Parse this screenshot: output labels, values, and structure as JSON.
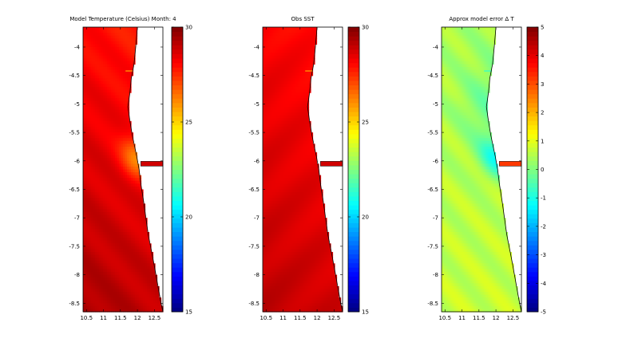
{
  "chart_data": [
    {
      "type": "heatmap",
      "title": "Model Temperature (Celsius)  Month: 4",
      "xlim": [
        10.4,
        12.75
      ],
      "ylim": [
        -8.65,
        -3.65
      ],
      "xticks": [
        10.5,
        11,
        11.5,
        12,
        12.5
      ],
      "xtick_labels": [
        "10.5",
        "11",
        "11.5",
        "12",
        "12.5"
      ],
      "yticks": [
        -4,
        -4.5,
        -5,
        -5.5,
        -6,
        -6.5,
        -7,
        -7.5,
        -8,
        -8.5
      ],
      "ytick_labels": [
        "-4",
        "-4.5",
        "-5",
        "-5.5",
        "-6",
        "-6.5",
        "-7",
        "-7.5",
        "-8",
        "-8.5"
      ],
      "colorbar": {
        "min": 15,
        "max": 30,
        "ticks": [
          15,
          20,
          25,
          30
        ],
        "tick_labels": [
          "15",
          "20",
          "25",
          "30"
        ]
      },
      "colormap": "jet",
      "field": "model"
    },
    {
      "type": "heatmap",
      "title": "Obs SST",
      "xlim": [
        10.4,
        12.75
      ],
      "ylim": [
        -8.65,
        -3.65
      ],
      "xticks": [
        10.5,
        11,
        11.5,
        12,
        12.5
      ],
      "xtick_labels": [
        "10.5",
        "11",
        "11.5",
        "12",
        "12.5"
      ],
      "yticks": [
        -4,
        -4.5,
        -5,
        -5.5,
        -6,
        -6.5,
        -7,
        -7.5,
        -8,
        -8.5
      ],
      "ytick_labels": [
        "-4",
        "-4.5",
        "-5",
        "-5.5",
        "-6",
        "-6.5",
        "-7",
        "-7.5",
        "-8",
        "-8.5"
      ],
      "colorbar": {
        "min": 15,
        "max": 30,
        "ticks": [
          15,
          20,
          25,
          30
        ],
        "tick_labels": [
          "15",
          "20",
          "25",
          "30"
        ]
      },
      "colormap": "jet",
      "field": "obs"
    },
    {
      "type": "heatmap",
      "title": "Approx model error  Δ T",
      "xlim": [
        10.4,
        12.75
      ],
      "ylim": [
        -8.65,
        -3.65
      ],
      "xticks": [
        10.5,
        11,
        11.5,
        12,
        12.5
      ],
      "xtick_labels": [
        "10.5",
        "11",
        "11.5",
        "12",
        "12.5"
      ],
      "yticks": [
        -4,
        -4.5,
        -5,
        -5.5,
        -6,
        -6.5,
        -7,
        -7.5,
        -8,
        -8.5
      ],
      "ytick_labels": [
        "-4",
        "-4.5",
        "-5",
        "-5.5",
        "-6",
        "-6.5",
        "-7",
        "-7.5",
        "-8",
        "-8.5"
      ],
      "colorbar": {
        "min": -5,
        "max": 5,
        "ticks": [
          -5,
          -4,
          -3,
          -2,
          -1,
          0,
          1,
          2,
          3,
          4,
          5
        ],
        "tick_labels": [
          "-5",
          "-4",
          "-3",
          "-2",
          "-1",
          "0",
          "1",
          "2",
          "3",
          "4",
          "5"
        ]
      },
      "colormap": "jet",
      "field": "error"
    }
  ],
  "coastline": {
    "lon": [
      12.0,
      11.95,
      11.9,
      11.82,
      11.78,
      11.72,
      11.78,
      11.85,
      11.92,
      11.98,
      12.05,
      12.1,
      12.18,
      12.25,
      12.32,
      12.42,
      12.5,
      12.56,
      12.62,
      12.68,
      12.75
    ],
    "lat": [
      -3.65,
      -4.0,
      -4.3,
      -4.55,
      -4.8,
      -5.05,
      -5.3,
      -5.55,
      -5.75,
      -5.92,
      -6.15,
      -6.4,
      -6.7,
      -7.0,
      -7.3,
      -7.6,
      -7.85,
      -8.05,
      -8.25,
      -8.45,
      -8.65
    ]
  },
  "river_mouth": {
    "lon": [
      12.1,
      12.75
    ],
    "lat": -6.05
  },
  "inlet": {
    "lon": [
      11.65,
      11.88
    ],
    "lat": -4.42
  }
}
